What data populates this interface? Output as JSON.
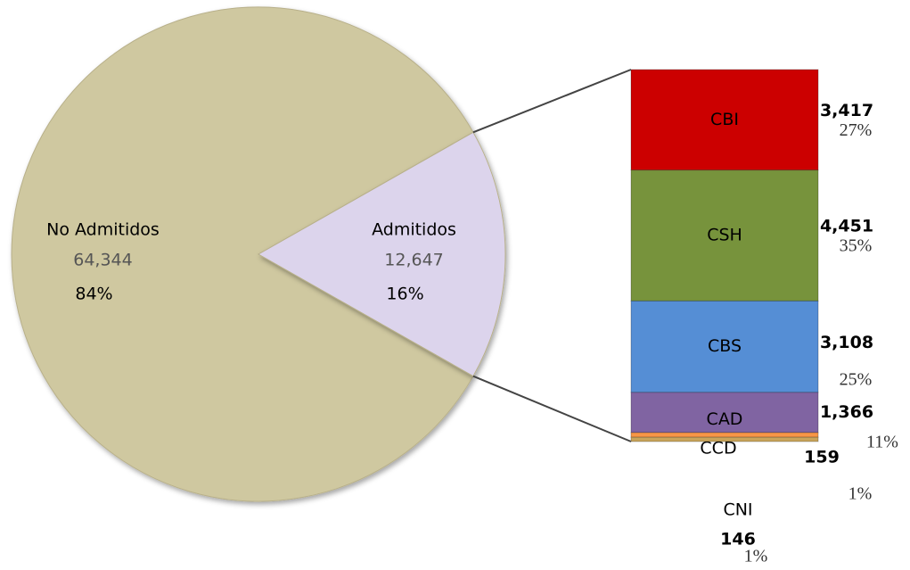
{
  "chart_data": [
    {
      "type": "pie",
      "categories": [
        "No Admitidos",
        "Admitidos"
      ],
      "values": [
        64344,
        12647
      ],
      "value_labels": [
        "64,344",
        "12,647"
      ],
      "percent_labels": [
        "84%",
        "16%"
      ],
      "colors": [
        "#cfc8a0",
        "#dcd4ec"
      ]
    },
    {
      "type": "bar",
      "stacked": true,
      "categories": [
        "CBI",
        "CSH",
        "CBS",
        "CAD",
        "CCD",
        "CNI"
      ],
      "values": [
        3417,
        4451,
        3108,
        1366,
        159,
        146
      ],
      "value_labels": [
        "3,417",
        "4,451",
        "3,108",
        "1,366",
        "159",
        "146"
      ],
      "percent_labels": [
        "27%",
        "35%",
        "25%",
        "11%",
        "1%",
        "1%"
      ],
      "colors": [
        "#cc0000",
        "#77933c",
        "#558ed5",
        "#8064a2",
        "#f79646",
        "#c9a45a"
      ]
    }
  ]
}
